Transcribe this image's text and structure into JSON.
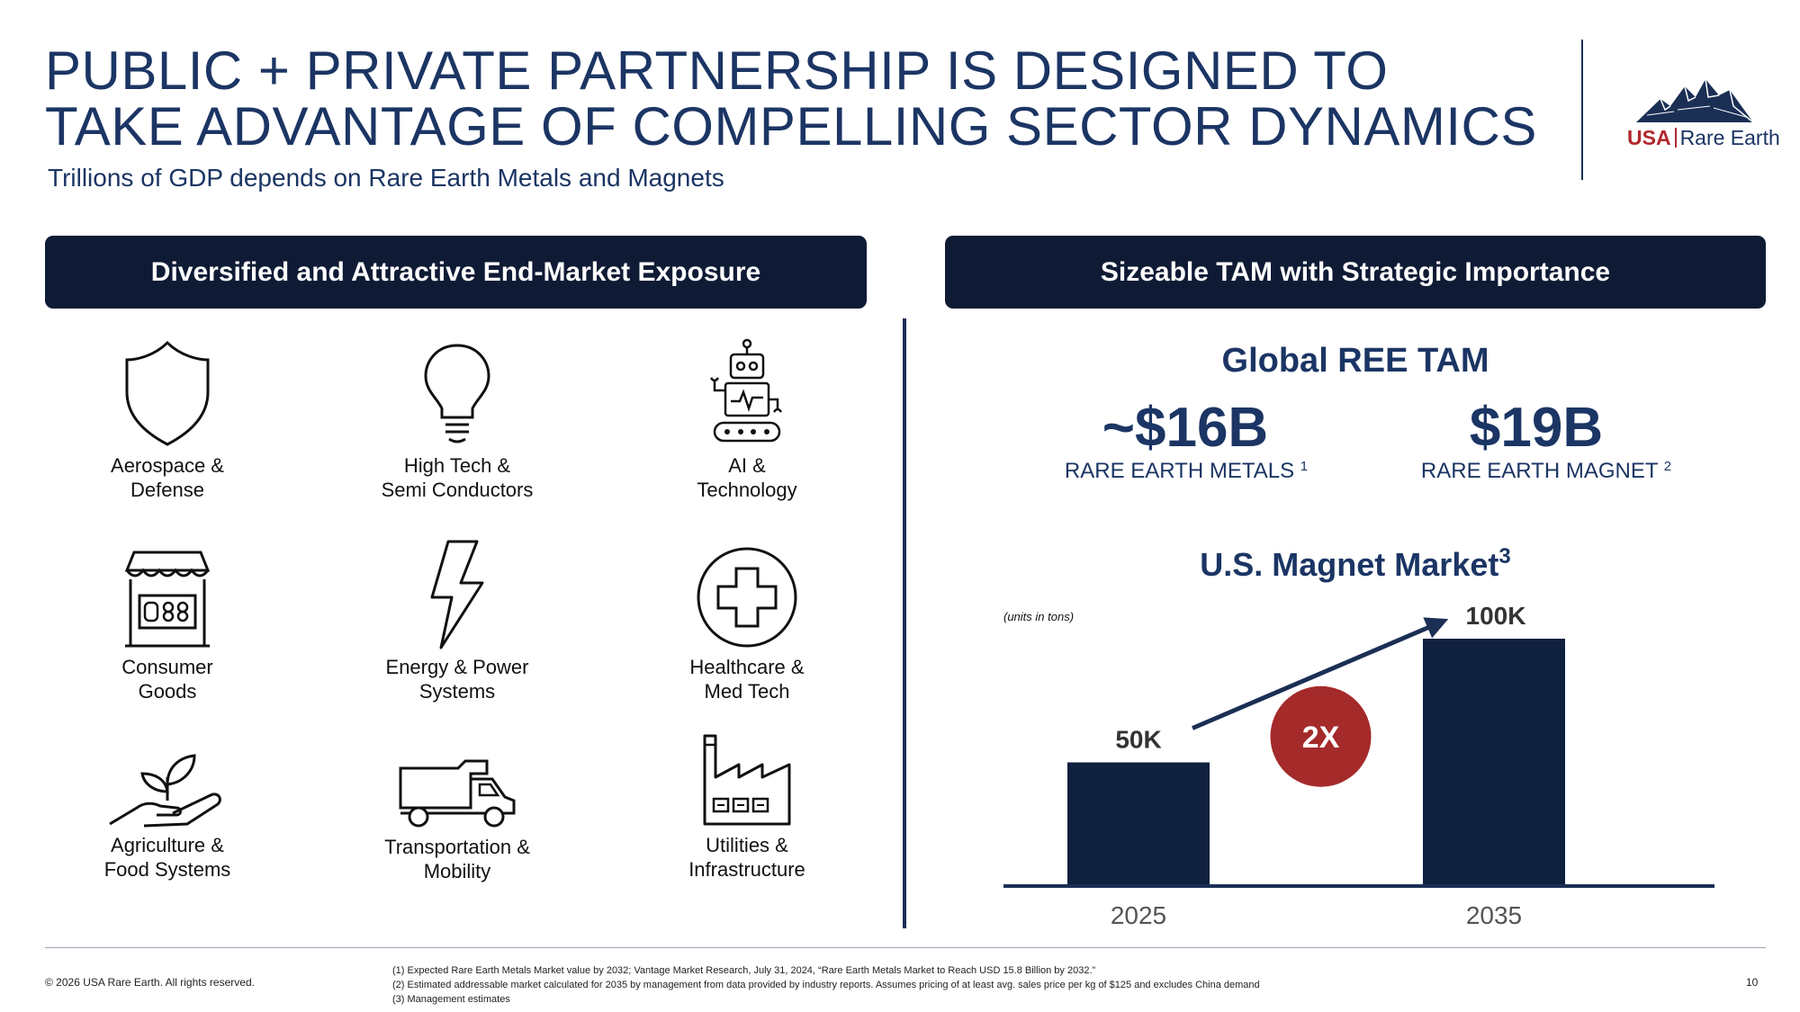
{
  "header": {
    "title_line1": "PUBLIC + PRIVATE PARTNERSHIP IS DESIGNED TO",
    "title_line2": "TAKE ADVANTAGE OF COMPELLING SECTOR DYNAMICS",
    "subtitle": "Trillions of GDP depends on Rare Earth Metals and Magnets"
  },
  "logo": {
    "usa": "USA",
    "rest": "Rare Earth",
    "icon": "mountain-logo"
  },
  "left_section": {
    "heading": "Diversified and Attractive End-Market Exposure",
    "markets": [
      {
        "line1": "Aerospace &",
        "line2": "Defense",
        "icon": "shield-icon"
      },
      {
        "line1": "High Tech &",
        "line2": "Semi Conductors",
        "icon": "lightbulb-icon"
      },
      {
        "line1": "AI &",
        "line2": "Technology",
        "icon": "robot-icon"
      },
      {
        "line1": "Consumer",
        "line2": "Goods",
        "icon": "storefront-icon"
      },
      {
        "line1": "Energy & Power",
        "line2": "Systems",
        "icon": "lightning-icon"
      },
      {
        "line1": "Healthcare &",
        "line2": "Med Tech",
        "icon": "medical-cross-icon"
      },
      {
        "line1": "Agriculture &",
        "line2": "Food Systems",
        "icon": "plant-hand-icon"
      },
      {
        "line1": "Transportation &",
        "line2": "Mobility",
        "icon": "truck-icon"
      },
      {
        "line1": "Utilities &",
        "line2": "Infrastructure",
        "icon": "factory-icon"
      }
    ]
  },
  "right_section": {
    "heading": "Sizeable TAM with Strategic Importance",
    "tam_title": "Global REE TAM",
    "stat1": {
      "value": "~$16B",
      "label": "RARE EARTH METALS",
      "note": "1"
    },
    "stat2": {
      "value": "$19B",
      "label": "RARE EARTH MAGNET",
      "note": "2"
    },
    "magnet_title": "U.S. Magnet Market",
    "magnet_note": "3"
  },
  "chart_data": {
    "type": "bar",
    "categories": [
      "2025",
      "2035"
    ],
    "values": [
      50,
      100
    ],
    "data_labels": [
      "50K",
      "100K"
    ],
    "units_note": "(units in tons)",
    "growth_badge": "2X",
    "ylim": [
      0,
      100
    ],
    "grid": false,
    "bar_color": "#10203f",
    "badge_color": "#a52a2a"
  },
  "footer": {
    "copyright": "© 2026 USA Rare Earth. All rights reserved.",
    "notes": [
      "(1) Expected Rare Earth Metals Market value by 2032; Vantage Market Research, July 31, 2024, “Rare Earth Metals Market to Reach USD 15.8 Billion by 2032.”",
      "(2) Estimated addressable market calculated for 2035 by management from data provided by industry reports.  Assumes pricing of at least avg. sales price per kg of $125 and excludes China demand",
      "(3) Management estimates"
    ],
    "page_number": "10"
  }
}
